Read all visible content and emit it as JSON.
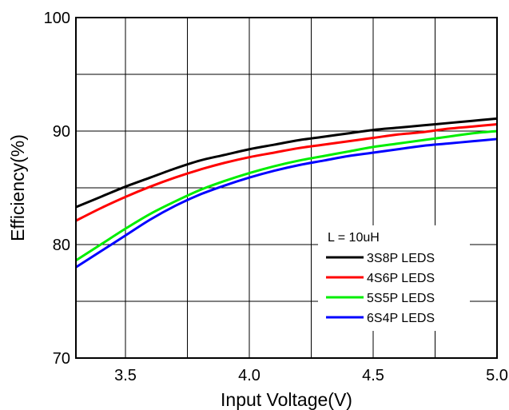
{
  "chart_data": {
    "type": "line",
    "title": "",
    "xlabel": "Input Voltage(V)",
    "ylabel": "Efficiency(%)",
    "xlim": [
      3.3,
      5.0
    ],
    "ylim": [
      70,
      100
    ],
    "x_ticks": [
      "3.5",
      "4.0",
      "4.5",
      "5.0"
    ],
    "y_ticks": [
      "70",
      "80",
      "90",
      "100"
    ],
    "grid": true,
    "legend_placement": "bottom-right",
    "legend_title": "L = 10uH",
    "x": [
      3.3,
      3.4,
      3.5,
      3.6,
      3.7,
      3.8,
      3.9,
      4.0,
      4.1,
      4.2,
      4.3,
      4.4,
      4.5,
      4.6,
      4.7,
      4.8,
      4.9,
      5.0
    ],
    "series": [
      {
        "name": "3S8P LEDS",
        "color": "#000000",
        "values": [
          83.3,
          84.2,
          85.1,
          85.9,
          86.7,
          87.4,
          87.9,
          88.4,
          88.8,
          89.2,
          89.5,
          89.8,
          90.1,
          90.3,
          90.5,
          90.7,
          90.9,
          91.1
        ]
      },
      {
        "name": "4S6P LEDS",
        "color": "#ff0000",
        "values": [
          82.1,
          83.2,
          84.2,
          85.1,
          85.9,
          86.6,
          87.2,
          87.7,
          88.1,
          88.5,
          88.8,
          89.1,
          89.4,
          89.7,
          89.9,
          90.2,
          90.4,
          90.6
        ]
      },
      {
        "name": "5S5P LEDS",
        "color": "#00ee00",
        "values": [
          78.6,
          80.0,
          81.4,
          82.7,
          83.8,
          84.8,
          85.6,
          86.3,
          86.9,
          87.4,
          87.8,
          88.2,
          88.6,
          88.9,
          89.2,
          89.5,
          89.8,
          90.0
        ]
      },
      {
        "name": "6S4P LEDS",
        "color": "#0000ff",
        "values": [
          78.0,
          79.4,
          80.8,
          82.2,
          83.4,
          84.4,
          85.2,
          85.9,
          86.5,
          87.0,
          87.4,
          87.8,
          88.1,
          88.4,
          88.7,
          88.9,
          89.1,
          89.3
        ]
      }
    ]
  }
}
